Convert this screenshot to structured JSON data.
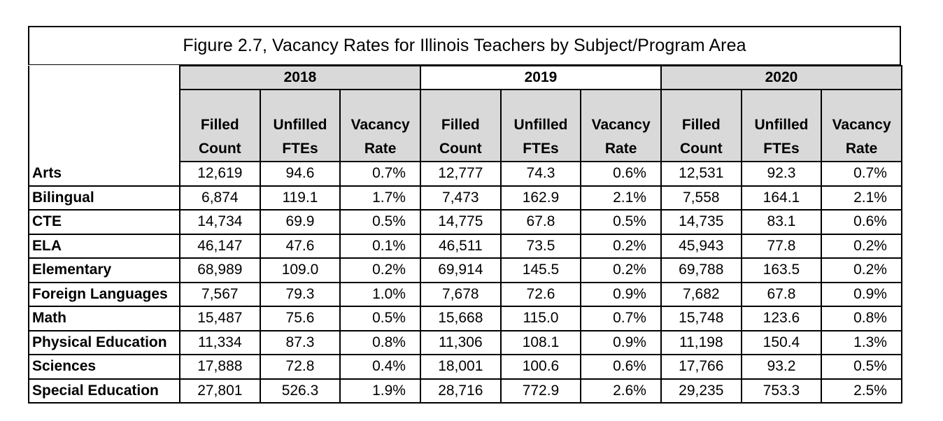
{
  "title": "Figure 2.7, Vacancy Rates for Illinois Teachers by Subject/Program Area",
  "years": [
    "2018",
    "2019",
    "2020"
  ],
  "subheaders": [
    {
      "line1": "Filled",
      "line2": "Count"
    },
    {
      "line1": "Unfilled",
      "line2": "FTEs"
    },
    {
      "line1": "Vacancy",
      "line2": "Rate"
    }
  ],
  "rows": [
    {
      "label": "Arts",
      "values": [
        "12,619",
        "94.6",
        "0.7%",
        "12,777",
        "74.3",
        "0.6%",
        "12,531",
        "92.3",
        "0.7%"
      ]
    },
    {
      "label": "Bilingual",
      "values": [
        "6,874",
        "119.1",
        "1.7%",
        "7,473",
        "162.9",
        "2.1%",
        "7,558",
        "164.1",
        "2.1%"
      ]
    },
    {
      "label": "CTE",
      "values": [
        "14,734",
        "69.9",
        "0.5%",
        "14,775",
        "67.8",
        "0.5%",
        "14,735",
        "83.1",
        "0.6%"
      ]
    },
    {
      "label": "ELA",
      "values": [
        "46,147",
        "47.6",
        "0.1%",
        "46,511",
        "73.5",
        "0.2%",
        "45,943",
        "77.8",
        "0.2%"
      ]
    },
    {
      "label": "Elementary",
      "values": [
        "68,989",
        "109.0",
        "0.2%",
        "69,914",
        "145.5",
        "0.2%",
        "69,788",
        "163.5",
        "0.2%"
      ]
    },
    {
      "label": "Foreign Languages",
      "values": [
        "7,567",
        "79.3",
        "1.0%",
        "7,678",
        "72.6",
        "0.9%",
        "7,682",
        "67.8",
        "0.9%"
      ]
    },
    {
      "label": "Math",
      "values": [
        "15,487",
        "75.6",
        "0.5%",
        "15,668",
        "115.0",
        "0.7%",
        "15,748",
        "123.6",
        "0.8%"
      ]
    },
    {
      "label": "Physical Education",
      "values": [
        "11,334",
        "87.3",
        "0.8%",
        "11,306",
        "108.1",
        "0.9%",
        "11,198",
        "150.4",
        "1.3%"
      ]
    },
    {
      "label": "Sciences",
      "values": [
        "17,888",
        "72.8",
        "0.4%",
        "18,001",
        "100.6",
        "0.6%",
        "17,766",
        "93.2",
        "0.5%"
      ]
    },
    {
      "label": "Special Education",
      "values": [
        "27,801",
        "526.3",
        "1.9%",
        "28,716",
        "772.9",
        "2.6%",
        "29,235",
        "753.3",
        "2.5%"
      ]
    }
  ],
  "colors": {
    "header_fill": "#d9d9d9",
    "border": "#000000"
  }
}
